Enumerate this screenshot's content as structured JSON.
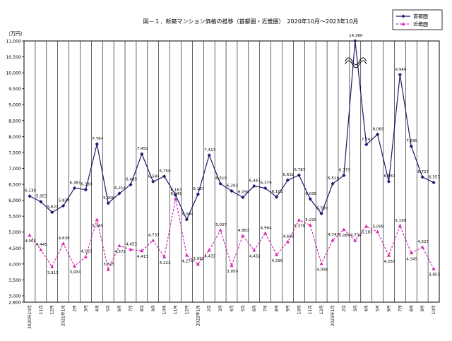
{
  "chart_data": {
    "type": "line",
    "title": "図－１．新築マンション価格の推移（首都圏・近畿圏）　2020年10月～2023年10月",
    "ylabel": "（万円）",
    "xlabel": "",
    "ylim": [
      2800,
      11000
    ],
    "yticks": [
      2800,
      3000,
      3500,
      4000,
      4500,
      5000,
      5500,
      6000,
      6500,
      7000,
      7500,
      8000,
      8500,
      9000,
      9500,
      10000,
      10500,
      11000
    ],
    "yticks_display": [
      "2,800",
      "3,000",
      "3,500",
      "4,000",
      "4,500",
      "5,000",
      "5,500",
      "6,000",
      "6,500",
      "7,000",
      "7,500",
      "8,000",
      "8,500",
      "9,000",
      "9,500",
      "10,000",
      "10,500",
      "11,000"
    ],
    "categories": [
      "2020年10月",
      "11月",
      "12月",
      "2021年1月",
      "2月",
      "3月",
      "4月",
      "5月",
      "6月",
      "7月",
      "8月",
      "9月",
      "10月",
      "11月",
      "12月",
      "2022年1月",
      "2月",
      "3月",
      "4月",
      "5月",
      "6月",
      "7月",
      "8月",
      "9月",
      "10月",
      "11月",
      "12月",
      "2023年1月",
      "2月",
      "3月",
      "4月",
      "5月",
      "6月",
      "7月",
      "8月",
      "9月",
      "10月"
    ],
    "legend_position": "top-right",
    "annotations": [
      "axis break marker near 2023年3月 (首都圏 14,360 exceeds axis)"
    ],
    "series": [
      {
        "name": "首都圏",
        "color": "#1a1a6e",
        "marker": "diamond",
        "values": [
          6130,
          5953,
          5621,
          5824,
          6383,
          6330,
          7764,
          5908,
          6214,
          6489,
          7452,
          6584,
          6750,
          6163,
          5394,
          6187,
          7413,
          6519,
          6291,
          6090,
          6447,
          6379,
          6102,
          6632,
          6787,
          6038,
          5580,
          6518,
          6779,
          14360,
          7747,
          8069,
          6587,
          9940,
          7695,
          6727,
          6557
        ],
        "labels": [
          "6,130",
          "5,953",
          "5,621",
          "5,824",
          "6,383",
          "6,330",
          "7,764",
          "5,908",
          "6,214",
          "6,489",
          "7,452",
          "6,584",
          "6,750",
          "6,163",
          "5,394",
          "6,187",
          "7,413",
          "6,519",
          "6,291",
          "6,090",
          "6,447",
          "6,379",
          "6,102",
          "6,632",
          "6,787",
          "6,038",
          "5,580",
          "6,518",
          "6,779",
          "14,360",
          "7,747",
          "8,069",
          "6,587",
          "9,940",
          "7,695",
          "6,727",
          "6,557"
        ]
      },
      {
        "name": "近畿圏",
        "color": "#d52ab0",
        "marker": "triangle",
        "values": [
          4901,
          4445,
          3913,
          4638,
          3934,
          4225,
          5385,
          3825,
          4572,
          4453,
          4413,
          4737,
          4222,
          6041,
          4274,
          3992,
          4433,
          5057,
          3950,
          4883,
          4432,
          4964,
          4290,
          4695,
          5378,
          5220,
          4008,
          4747,
          5080,
          4734,
          5183,
          5008,
          4267,
          5199,
          4345,
          4527,
          3851
        ],
        "labels": [
          "4,901",
          "4,445",
          "3,913",
          "4,638",
          "3,934",
          "4,225",
          "5,385",
          "3,825",
          "4,572",
          "4,453",
          "4,413",
          "4,737",
          "4,222",
          "6,041",
          "4,274",
          "3,992",
          "4,433",
          "5,057",
          "3,950",
          "4,883",
          "4,432",
          "4,964",
          "4,290",
          "4,695",
          "5,378",
          "5,220",
          "4,008",
          "4,747",
          "5,080",
          "4,734",
          "5,183",
          "5,008",
          "4,267",
          "5,199",
          "4,345",
          "4,527",
          "3,851"
        ]
      }
    ]
  }
}
